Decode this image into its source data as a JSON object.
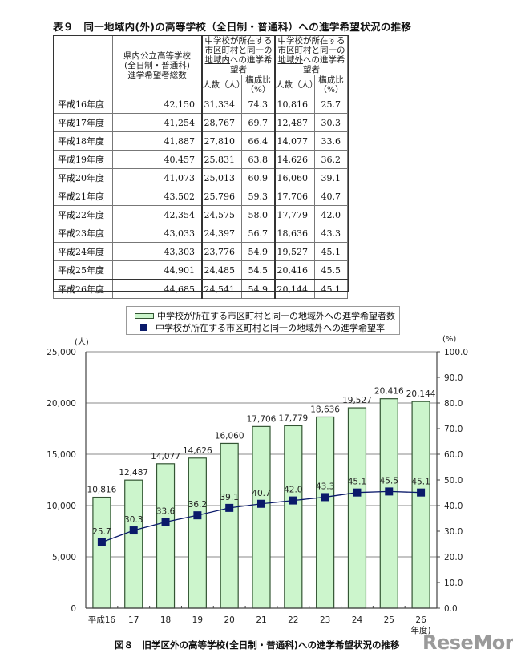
{
  "table": {
    "title": "表９　同一地域内(外)の高等学校（全日制・普通科）への進学希望状況の推移",
    "headers": {
      "total": [
        "県内公立高等学校",
        "(全日制・普通科)",
        "進学希望者総数"
      ],
      "inside_group": [
        "中学校が所在する",
        "市区町村と同一の",
        "地域内",
        "への進学希望者"
      ],
      "outside_group": [
        "中学校が所在する",
        "市区町村と同一の",
        "地域外",
        "への進学希望者"
      ],
      "count": "人数（人）",
      "ratio": "構成比（%）"
    },
    "rows": [
      {
        "year": "平成16年度",
        "total": "42,150",
        "in_count": "31,334",
        "in_ratio": "74.3",
        "out_count": "10,816",
        "out_ratio": "25.7"
      },
      {
        "year": "平成17年度",
        "total": "41,254",
        "in_count": "28,767",
        "in_ratio": "69.7",
        "out_count": "12,487",
        "out_ratio": "30.3"
      },
      {
        "year": "平成18年度",
        "total": "41,887",
        "in_count": "27,810",
        "in_ratio": "66.4",
        "out_count": "14,077",
        "out_ratio": "33.6"
      },
      {
        "year": "平成19年度",
        "total": "40,457",
        "in_count": "25,831",
        "in_ratio": "63.8",
        "out_count": "14,626",
        "out_ratio": "36.2"
      },
      {
        "year": "平成20年度",
        "total": "41,073",
        "in_count": "25,013",
        "in_ratio": "60.9",
        "out_count": "16,060",
        "out_ratio": "39.1"
      },
      {
        "year": "平成21年度",
        "total": "43,502",
        "in_count": "25,796",
        "in_ratio": "59.3",
        "out_count": "17,706",
        "out_ratio": "40.7"
      },
      {
        "year": "平成22年度",
        "total": "42,354",
        "in_count": "24,575",
        "in_ratio": "58.0",
        "out_count": "17,779",
        "out_ratio": "42.0"
      },
      {
        "year": "平成23年度",
        "total": "43,033",
        "in_count": "24,397",
        "in_ratio": "56.7",
        "out_count": "18,636",
        "out_ratio": "43.3"
      },
      {
        "year": "平成24年度",
        "total": "43,303",
        "in_count": "23,776",
        "in_ratio": "54.9",
        "out_count": "19,527",
        "out_ratio": "45.1"
      },
      {
        "year": "平成25年度",
        "total": "44,901",
        "in_count": "24,485",
        "in_ratio": "54.5",
        "out_count": "20,416",
        "out_ratio": "45.5"
      },
      {
        "year": "平成26年度",
        "total": "44,685",
        "in_count": "24,541",
        "in_ratio": "54.9",
        "out_count": "20,144",
        "out_ratio": "45.1"
      }
    ]
  },
  "chart_data": {
    "type": "bar",
    "title": "図８　旧学区外の高等学校(全日制・普通科)への進学希望状況の推移",
    "categories": [
      "平成16",
      "17",
      "18",
      "19",
      "20",
      "21",
      "22",
      "23",
      "24",
      "25",
      "26"
    ],
    "x_suffix": "年度)",
    "series": [
      {
        "name": "中学校が所在する市区町村と同一の地域外への進学希望者数",
        "type": "bar",
        "axis": "left",
        "color": "#ccf5cc",
        "edge": "#335533",
        "values": [
          10816,
          12487,
          14077,
          14626,
          16060,
          17706,
          17779,
          18636,
          19527,
          20416,
          20144
        ],
        "labels": [
          "10,816",
          "12,487",
          "14,077",
          "14,626",
          "16,060",
          "17,706",
          "17,779",
          "18,636",
          "19,527",
          "20,416",
          "20,144"
        ]
      },
      {
        "name": "中学校が所在する市区町村と同一の地域外への進学希望率",
        "type": "line",
        "axis": "right",
        "color": "#0a1a6a",
        "values": [
          25.7,
          30.3,
          33.6,
          36.2,
          39.1,
          40.7,
          42.0,
          43.3,
          45.1,
          45.5,
          45.1
        ],
        "labels": [
          "25.7",
          "30.3",
          "33.6",
          "36.2",
          "39.1",
          "40.7",
          "42.0",
          "43.3",
          "45.1",
          "45.5",
          "45.1"
        ]
      }
    ],
    "ylabel_left": "(人)",
    "ylabel_right": "(%)",
    "ylim_left": [
      0,
      25000
    ],
    "ylim_right": [
      0,
      100
    ],
    "yticks_left": [
      "0",
      "5,000",
      "10,000",
      "15,000",
      "20,000",
      "25,000"
    ],
    "yticks_right": [
      "0.0",
      "10.0",
      "20.0",
      "30.0",
      "40.0",
      "50.0",
      "60.0",
      "70.0",
      "80.0",
      "90.0",
      "100.0"
    ],
    "grid": true,
    "legend_position": "top"
  },
  "watermark": "ReseMom"
}
